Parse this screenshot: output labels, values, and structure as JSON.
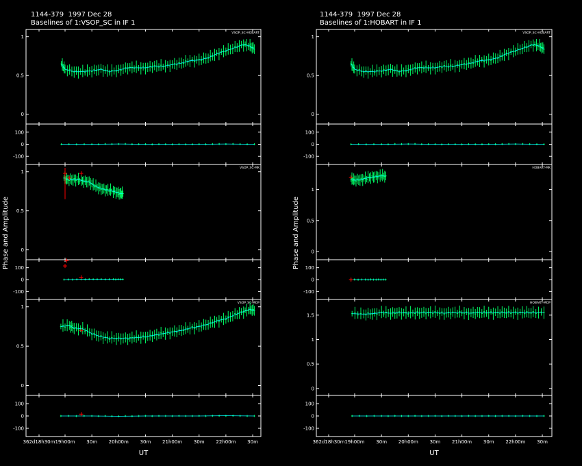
{
  "headers": [
    {
      "title": "1144-379  1997 Dec 28",
      "subtitle": "Baselines of 1:VSOP_SC in IF 1"
    },
    {
      "title": "1144-379  1997 Dec 28",
      "subtitle": "Baselines of 1:HOBART in IF 1"
    }
  ],
  "colors": {
    "data": "#00ff66",
    "model": "#00ffff",
    "flagged": "#ff0000",
    "frame": "#ffffff"
  },
  "chart_data": [
    {
      "type": "scatter",
      "title": "Baselines of 1:VSOP_SC in IF 1",
      "ylabel": "Phase and Amplitude",
      "xlabel": "UT",
      "x_tick_labels": [
        "362d18h30m",
        "19h00m",
        "30m",
        "20h00m",
        "30m",
        "21h00m",
        "30m",
        "22h00m",
        "30m"
      ],
      "xlim_hours": [
        18.5,
        22.6
      ],
      "baselines": [
        {
          "name": "VSOP_SC-HOBART",
          "amp_ylim": [
            -0.1,
            1.05
          ],
          "amp_ticks": [
            "0",
            "0.5",
            "1"
          ],
          "amp": [
            [
              18.93,
              0.65
            ],
            [
              19.0,
              0.58
            ],
            [
              19.17,
              0.55
            ],
            [
              19.33,
              0.55
            ],
            [
              19.5,
              0.56
            ],
            [
              19.67,
              0.58
            ],
            [
              19.83,
              0.55
            ],
            [
              20.0,
              0.57
            ],
            [
              20.17,
              0.6
            ],
            [
              20.33,
              0.6
            ],
            [
              20.5,
              0.6
            ],
            [
              20.67,
              0.62
            ],
            [
              20.83,
              0.62
            ],
            [
              21.0,
              0.64
            ],
            [
              21.17,
              0.66
            ],
            [
              21.33,
              0.69
            ],
            [
              21.5,
              0.7
            ],
            [
              21.67,
              0.73
            ],
            [
              21.83,
              0.78
            ],
            [
              22.0,
              0.82
            ],
            [
              22.17,
              0.86
            ],
            [
              22.33,
              0.9
            ],
            [
              22.45,
              0.88
            ],
            [
              22.53,
              0.84
            ]
          ],
          "phase_ylim": [
            -150,
            150
          ],
          "phase_ticks": [
            "100",
            "0",
            "-100"
          ],
          "phase": [
            [
              18.93,
              0
            ],
            [
              19.5,
              0
            ],
            [
              20.0,
              2
            ],
            [
              20.5,
              0
            ],
            [
              21.0,
              0
            ],
            [
              21.5,
              0
            ],
            [
              22.0,
              2
            ],
            [
              22.53,
              0
            ]
          ],
          "flagged_amp": [],
          "flagged_phase": []
        },
        {
          "name": "VSOP_SC-MK",
          "amp_ylim": [
            -0.1,
            1.05
          ],
          "amp_ticks": [
            "0",
            "0.5",
            "1"
          ],
          "amp": [
            [
              18.98,
              0.92
            ],
            [
              19.05,
              0.9
            ],
            [
              19.15,
              0.9
            ],
            [
              19.25,
              0.9
            ],
            [
              19.35,
              0.88
            ],
            [
              19.45,
              0.87
            ],
            [
              19.55,
              0.82
            ],
            [
              19.65,
              0.79
            ],
            [
              19.75,
              0.77
            ],
            [
              19.85,
              0.76
            ],
            [
              19.95,
              0.74
            ],
            [
              20.03,
              0.72
            ],
            [
              20.08,
              0.72
            ]
          ],
          "phase_ylim": [
            -150,
            150
          ],
          "phase_ticks": [
            "100",
            "0",
            "-100"
          ],
          "phase": [
            [
              18.98,
              0
            ],
            [
              19.3,
              2
            ],
            [
              19.6,
              3
            ],
            [
              19.9,
              2
            ],
            [
              20.08,
              2
            ]
          ],
          "flagged_amp": [
            [
              19.0,
              0.98
            ],
            [
              19.08,
              0.92
            ],
            [
              19.3,
              0.98
            ]
          ],
          "flagged_phase": [
            [
              19.0,
              115
            ],
            [
              19.03,
              160
            ],
            [
              19.3,
              20
            ]
          ]
        },
        {
          "name": "VSOP_SC-MOP",
          "amp_ylim": [
            -0.1,
            1.05
          ],
          "amp_ticks": [
            "0",
            "0.5",
            "1"
          ],
          "amp": [
            [
              18.92,
              0.75
            ],
            [
              19.08,
              0.76
            ],
            [
              19.17,
              0.73
            ],
            [
              19.33,
              0.72
            ],
            [
              19.5,
              0.66
            ],
            [
              19.67,
              0.62
            ],
            [
              19.83,
              0.6
            ],
            [
              20.0,
              0.6
            ],
            [
              20.17,
              0.6
            ],
            [
              20.33,
              0.61
            ],
            [
              20.5,
              0.62
            ],
            [
              20.67,
              0.64
            ],
            [
              20.83,
              0.66
            ],
            [
              21.0,
              0.68
            ],
            [
              21.17,
              0.7
            ],
            [
              21.33,
              0.73
            ],
            [
              21.5,
              0.75
            ],
            [
              21.67,
              0.78
            ],
            [
              21.83,
              0.82
            ],
            [
              22.0,
              0.85
            ],
            [
              22.17,
              0.9
            ],
            [
              22.33,
              0.94
            ],
            [
              22.45,
              0.97
            ],
            [
              22.53,
              0.95
            ]
          ],
          "phase_ylim": [
            -150,
            150
          ],
          "phase_ticks": [
            "100",
            "0",
            "-100"
          ],
          "phase": [
            [
              18.92,
              0
            ],
            [
              19.5,
              0
            ],
            [
              20.0,
              -2
            ],
            [
              20.5,
              0
            ],
            [
              21.0,
              0
            ],
            [
              21.5,
              0
            ],
            [
              22.0,
              2
            ],
            [
              22.53,
              0
            ]
          ],
          "flagged_amp": [
            [
              19.3,
              0.7
            ]
          ],
          "flagged_phase": [
            [
              19.3,
              15
            ]
          ]
        }
      ]
    },
    {
      "type": "scatter",
      "title": "Baselines of 1:HOBART in IF 1",
      "ylabel": "Phase and Amplitude",
      "xlabel": "UT",
      "x_tick_labels": [
        "362d18h30m",
        "19h00m",
        "30m",
        "20h00m",
        "30m",
        "21h00m",
        "30m",
        "22h00m",
        "30m"
      ],
      "xlim_hours": [
        18.5,
        22.6
      ],
      "baselines": [
        {
          "name": "VSOP_SC-HOBART",
          "amp_ylim": [
            -0.1,
            1.05
          ],
          "amp_ticks": [
            "0",
            "0.5",
            "1"
          ],
          "amp": [
            [
              18.93,
              0.65
            ],
            [
              19.0,
              0.58
            ],
            [
              19.17,
              0.55
            ],
            [
              19.33,
              0.55
            ],
            [
              19.5,
              0.56
            ],
            [
              19.67,
              0.58
            ],
            [
              19.83,
              0.55
            ],
            [
              20.0,
              0.57
            ],
            [
              20.17,
              0.6
            ],
            [
              20.33,
              0.6
            ],
            [
              20.5,
              0.6
            ],
            [
              20.67,
              0.62
            ],
            [
              20.83,
              0.62
            ],
            [
              21.0,
              0.64
            ],
            [
              21.17,
              0.66
            ],
            [
              21.33,
              0.69
            ],
            [
              21.5,
              0.7
            ],
            [
              21.67,
              0.73
            ],
            [
              21.83,
              0.78
            ],
            [
              22.0,
              0.82
            ],
            [
              22.17,
              0.86
            ],
            [
              22.33,
              0.9
            ],
            [
              22.45,
              0.88
            ],
            [
              22.53,
              0.84
            ]
          ],
          "phase_ylim": [
            -150,
            150
          ],
          "phase_ticks": [
            "100",
            "0",
            "-100"
          ],
          "phase": [
            [
              18.93,
              0
            ],
            [
              19.5,
              0
            ],
            [
              20.0,
              2
            ],
            [
              20.5,
              0
            ],
            [
              21.0,
              0
            ],
            [
              21.5,
              0
            ],
            [
              22.0,
              2
            ],
            [
              22.53,
              0
            ]
          ],
          "flagged_amp": [],
          "flagged_phase": []
        },
        {
          "name": "HOBART-MK",
          "amp_ylim": [
            -0.1,
            1.35
          ],
          "amp_ticks": [
            "0",
            "0.5",
            "1"
          ],
          "amp": [
            [
              18.93,
              1.17
            ],
            [
              19.0,
              1.15
            ],
            [
              19.1,
              1.16
            ],
            [
              19.2,
              1.18
            ],
            [
              19.3,
              1.2
            ],
            [
              19.4,
              1.21
            ],
            [
              19.5,
              1.22
            ],
            [
              19.58,
              1.22
            ]
          ],
          "phase_ylim": [
            -150,
            150
          ],
          "phase_ticks": [
            "100",
            "0",
            "-100"
          ],
          "phase": [
            [
              18.93,
              0
            ],
            [
              19.2,
              0
            ],
            [
              19.4,
              0
            ],
            [
              19.58,
              0
            ]
          ],
          "flagged_amp": [
            [
              18.93,
              1.2
            ]
          ],
          "flagged_phase": [
            [
              18.93,
              0
            ]
          ]
        },
        {
          "name": "HOBART-MOP",
          "amp_ylim": [
            -0.1,
            1.75
          ],
          "amp_ticks": [
            "0",
            "0.5",
            "1",
            "1.5"
          ],
          "amp": [
            [
              18.95,
              1.53
            ],
            [
              19.17,
              1.52
            ],
            [
              19.33,
              1.53
            ],
            [
              19.5,
              1.55
            ],
            [
              19.67,
              1.54
            ],
            [
              19.83,
              1.55
            ],
            [
              20.0,
              1.54
            ],
            [
              20.17,
              1.55
            ],
            [
              20.33,
              1.55
            ],
            [
              20.5,
              1.55
            ],
            [
              20.67,
              1.54
            ],
            [
              20.83,
              1.55
            ],
            [
              21.0,
              1.55
            ],
            [
              21.17,
              1.54
            ],
            [
              21.33,
              1.55
            ],
            [
              21.5,
              1.55
            ],
            [
              21.67,
              1.55
            ],
            [
              21.83,
              1.55
            ],
            [
              22.0,
              1.55
            ],
            [
              22.17,
              1.55
            ],
            [
              22.33,
              1.55
            ],
            [
              22.53,
              1.55
            ]
          ],
          "phase_ylim": [
            -150,
            150
          ],
          "phase_ticks": [
            "100",
            "0",
            "-100"
          ],
          "phase": [
            [
              18.95,
              0
            ],
            [
              19.5,
              0
            ],
            [
              20.0,
              0
            ],
            [
              20.5,
              0
            ],
            [
              21.0,
              0
            ],
            [
              21.5,
              0
            ],
            [
              22.0,
              0
            ],
            [
              22.53,
              0
            ]
          ],
          "flagged_amp": [],
          "flagged_phase": []
        }
      ]
    }
  ]
}
